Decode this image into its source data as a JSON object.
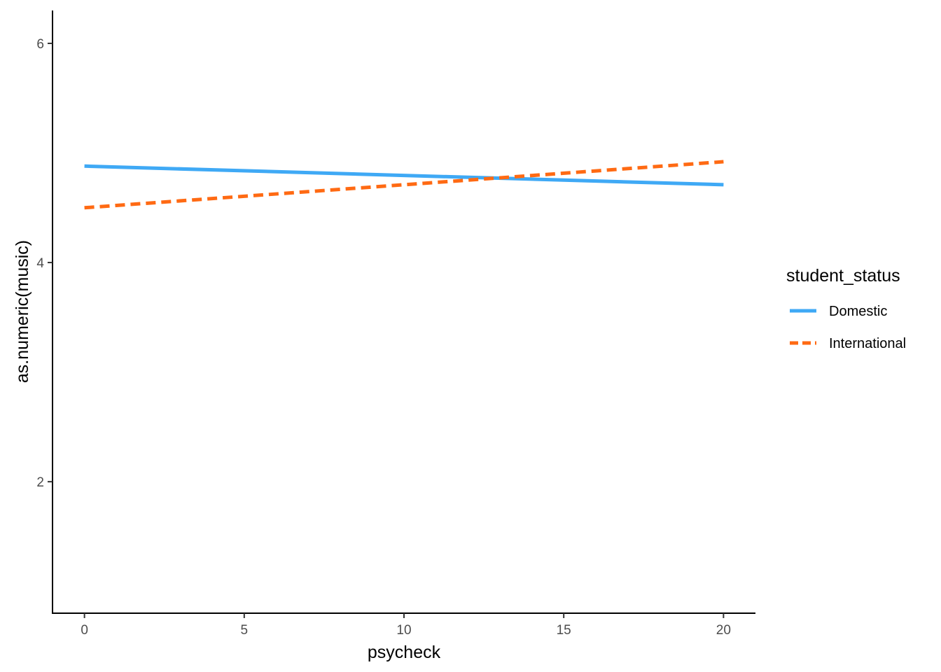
{
  "chart_data": {
    "type": "line",
    "xlabel": "psycheck",
    "ylabel": "as.numeric(music)",
    "xlim": [
      -1,
      21
    ],
    "ylim": [
      0.8,
      6.3
    ],
    "x_ticks": [
      0,
      5,
      10,
      15,
      20
    ],
    "y_ticks": [
      2,
      4,
      6
    ],
    "grid": false,
    "legend": {
      "title": "student_status",
      "position": "right"
    },
    "series": [
      {
        "name": "Domestic",
        "x": [
          0,
          20
        ],
        "y": [
          4.88,
          4.71
        ],
        "color": "#3fa9f5",
        "linestyle": "solid"
      },
      {
        "name": "International",
        "x": [
          0,
          20
        ],
        "y": [
          4.5,
          4.92
        ],
        "color": "#ff6a13",
        "linestyle": "dashed"
      }
    ]
  }
}
